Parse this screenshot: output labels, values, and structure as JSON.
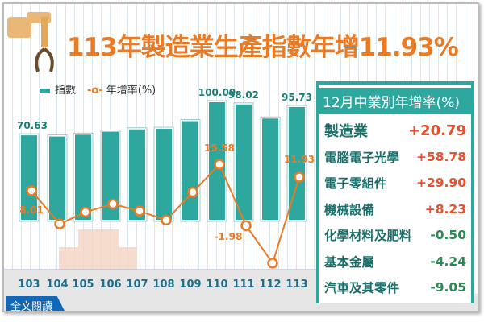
{
  "title": "113年製造業生產指數年增11.93%",
  "legend": {
    "bar": "指數",
    "line": "年增率(%)"
  },
  "chart_data": {
    "type": "bar+line",
    "title": "113年製造業生產指數年增11.93%",
    "categories": [
      "103",
      "104",
      "105",
      "106",
      "107",
      "108",
      "109",
      "110",
      "111",
      "112",
      "113"
    ],
    "series": [
      {
        "name": "指數",
        "type": "bar",
        "values": [
          70.63,
          69.6,
          71.2,
          73.9,
          75.9,
          76.4,
          83.2,
          100.0,
          98.02,
          85.53,
          95.73
        ],
        "labeled": {
          "103": "70.63",
          "110": "100.00",
          "111": "98.02",
          "113": "95.73"
        }
      },
      {
        "name": "年增率(%)",
        "type": "line",
        "values": [
          8.01,
          -1.5,
          1.9,
          4.2,
          2.2,
          -0.4,
          7.6,
          15.58,
          -1.98,
          -12.74,
          11.93
        ],
        "labeled": {
          "103": "8.01",
          "110": "15.58",
          "111": "-1.98",
          "113": "11.93"
        }
      }
    ],
    "colors": {
      "bar": "#2ea79f",
      "line": "#ea7a24"
    }
  },
  "panel": {
    "title": "12月中業別年增率(%)",
    "rows": [
      {
        "name": "製造業",
        "value": "+20.79"
      },
      {
        "name": "電腦電子光學",
        "value": "+58.78"
      },
      {
        "name": "電子零組件",
        "value": "+29.90"
      },
      {
        "name": "機械設備",
        "value": "+8.23"
      },
      {
        "name": "化學材料及肥料",
        "value": "-0.50"
      },
      {
        "name": "基本金屬",
        "value": "-4.24"
      },
      {
        "name": "汽車及其零件",
        "value": "-9.05"
      }
    ]
  },
  "footer": {
    "read_full": "全文閱讀"
  }
}
